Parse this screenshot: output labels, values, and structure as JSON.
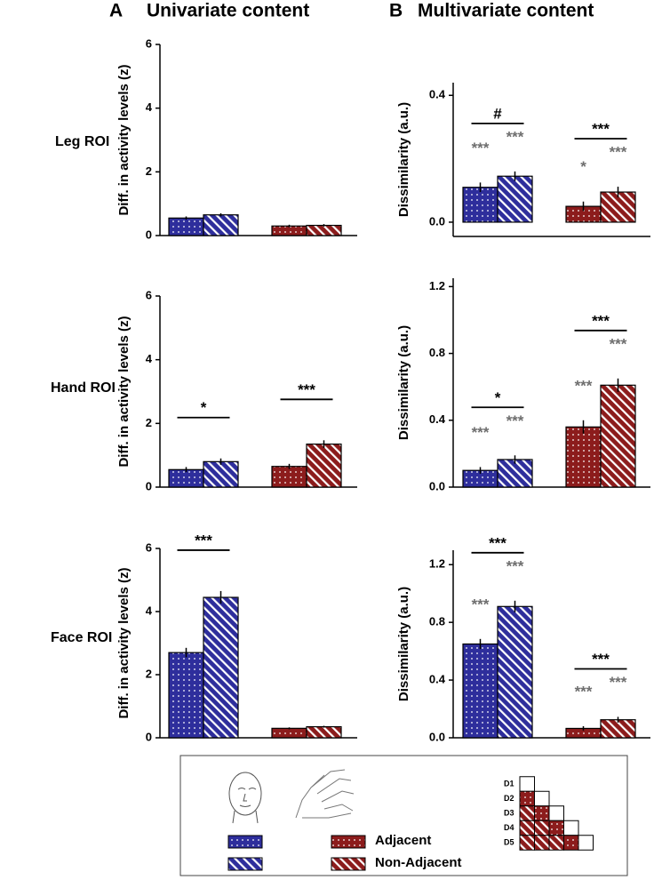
{
  "panels": [
    {
      "letter": "A",
      "title": "Univariate content"
    },
    {
      "letter": "B",
      "title": "Multivariate content"
    }
  ],
  "row_labels": [
    "Leg ROI",
    "Hand ROI",
    "Face ROI"
  ],
  "chart_data": [
    {
      "type": "bar",
      "y_label": "Diff. in activity levels (z)",
      "ylim": [
        0,
        6
      ],
      "yticks": [
        0,
        2,
        4,
        6
      ],
      "group_colors": [
        "#2e2e9c",
        "#8c1c1c"
      ],
      "series": [
        {
          "name": "Adjacent",
          "pattern": "dots",
          "values": [
            0.55,
            0.3
          ],
          "errors": [
            0.05,
            0.04
          ],
          "significance": [
            null,
            null
          ]
        },
        {
          "name": "Non-Adjacent",
          "pattern": "hatch",
          "values": [
            0.65,
            0.32
          ],
          "errors": [
            0.05,
            0.04
          ],
          "significance": [
            null,
            null
          ]
        }
      ],
      "brackets": [
        null,
        null
      ]
    },
    {
      "type": "bar",
      "y_label": "Dissimilarity (a.u.)",
      "ylim": [
        -0.045,
        0.44
      ],
      "yticks": [
        {
          "value": 0,
          "label": "0.0"
        },
        0.4
      ],
      "group_colors": [
        "#2e2e9c",
        "#8c1c1c"
      ],
      "series": [
        {
          "name": "Adjacent",
          "pattern": "dots",
          "values": [
            0.11,
            0.05
          ],
          "errors": [
            0.015,
            0.015
          ],
          "significance": [
            "***",
            "*"
          ]
        },
        {
          "name": "Non-Adjacent",
          "pattern": "hatch",
          "values": [
            0.145,
            0.095
          ],
          "errors": [
            0.015,
            0.017
          ],
          "significance": [
            "***",
            "***"
          ]
        }
      ],
      "brackets": [
        "#",
        "***"
      ]
    },
    {
      "type": "bar",
      "y_label": "Diff. in activity levels (z)",
      "ylim": [
        0,
        6
      ],
      "yticks": [
        0,
        2,
        4,
        6
      ],
      "group_colors": [
        "#2e2e9c",
        "#8c1c1c"
      ],
      "series": [
        {
          "name": "Adjacent",
          "pattern": "dots",
          "values": [
            0.55,
            0.65
          ],
          "errors": [
            0.08,
            0.08
          ],
          "significance": [
            null,
            null
          ]
        },
        {
          "name": "Non-Adjacent",
          "pattern": "hatch",
          "values": [
            0.8,
            1.35
          ],
          "errors": [
            0.1,
            0.12
          ],
          "significance": [
            null,
            null
          ]
        }
      ],
      "brackets": [
        "*",
        "***"
      ]
    },
    {
      "type": "bar",
      "y_label": "Dissimilarity (a.u.)",
      "ylim": [
        0,
        1.25
      ],
      "yticks": [
        {
          "value": 0,
          "label": "0.0"
        },
        0.4,
        0.8,
        1.2
      ],
      "group_colors": [
        "#2e2e9c",
        "#8c1c1c"
      ],
      "series": [
        {
          "name": "Adjacent",
          "pattern": "dots",
          "values": [
            0.1,
            0.36
          ],
          "errors": [
            0.02,
            0.04
          ],
          "significance": [
            "***",
            "***"
          ]
        },
        {
          "name": "Non-Adjacent",
          "pattern": "hatch",
          "values": [
            0.165,
            0.61
          ],
          "errors": [
            0.025,
            0.04
          ],
          "significance": [
            "***",
            "***"
          ]
        }
      ],
      "brackets": [
        "*",
        "***"
      ]
    },
    {
      "type": "bar",
      "y_label": "Diff. in activity levels (z)",
      "ylim": [
        0,
        6
      ],
      "yticks": [
        0,
        2,
        4,
        6
      ],
      "group_colors": [
        "#2e2e9c",
        "#8c1c1c"
      ],
      "series": [
        {
          "name": "Adjacent",
          "pattern": "dots",
          "values": [
            2.7,
            0.3
          ],
          "errors": [
            0.15,
            0.03
          ],
          "significance": [
            null,
            null
          ]
        },
        {
          "name": "Non-Adjacent",
          "pattern": "hatch",
          "values": [
            4.45,
            0.35
          ],
          "errors": [
            0.2,
            0.03
          ],
          "significance": [
            null,
            null
          ]
        }
      ],
      "brackets": [
        "***",
        null
      ]
    },
    {
      "type": "bar",
      "y_label": "Dissimilarity (a.u.)",
      "ylim": [
        0,
        1.3
      ],
      "yticks": [
        {
          "value": 0,
          "label": "0.0"
        },
        0.4,
        0.8,
        1.2
      ],
      "group_colors": [
        "#2e2e9c",
        "#8c1c1c"
      ],
      "series": [
        {
          "name": "Adjacent",
          "pattern": "dots",
          "values": [
            0.65,
            0.065
          ],
          "errors": [
            0.035,
            0.015
          ],
          "significance": [
            "***",
            "***"
          ]
        },
        {
          "name": "Non-Adjacent",
          "pattern": "hatch",
          "values": [
            0.91,
            0.125
          ],
          "errors": [
            0.04,
            0.02
          ],
          "significance": [
            "***",
            "***"
          ]
        }
      ],
      "brackets": [
        "***",
        "***"
      ]
    }
  ],
  "legend": {
    "matrix_labels": [
      "D1",
      "D2",
      "D3",
      "D4",
      "D5"
    ]
  }
}
